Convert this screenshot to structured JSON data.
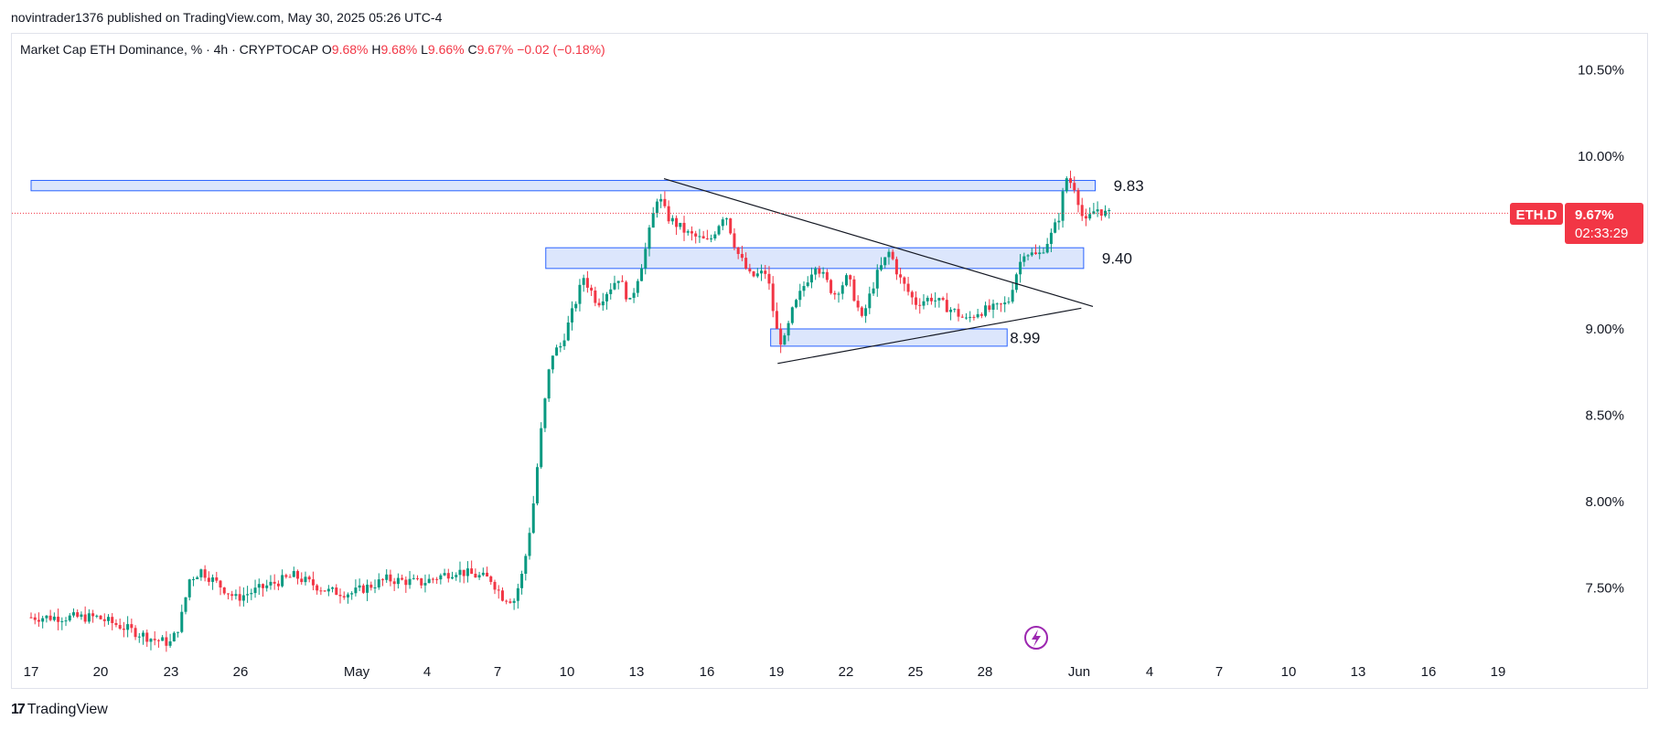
{
  "header": {
    "published_line": "novintrader1376 published on TradingView.com, May 30, 2025 05:26 UTC-4"
  },
  "legend": {
    "symbol_line": "Market Cap ETH Dominance, % · 4h · CRYPTOCAP",
    "open_label": "O",
    "open_value": "9.68%",
    "high_label": "H",
    "high_value": "9.68%",
    "low_label": "L",
    "low_value": "9.66%",
    "close_label": "C",
    "close_value": "9.67%",
    "change": "−0.02 (−0.18%)"
  },
  "price_tag": {
    "symbol": "ETH.D",
    "price": "9.67%",
    "countdown": "02:33:29"
  },
  "footer": {
    "brand": "TradingView",
    "mark": "17"
  },
  "colors": {
    "up": "#089981",
    "down": "#f23645",
    "zone_fill": "#d6e2fb",
    "zone_stroke": "#2962ff",
    "trendline": "#131722",
    "current_price_line": "#f23645",
    "text": "#131722"
  },
  "chart_data": {
    "type": "candlestick",
    "timeframe": "4h",
    "symbol": "CRYPTOCAP:ETH.D",
    "ylim": [
      7.15,
      10.75
    ],
    "y_ticks": [
      "10.50%",
      "10.00%",
      "9.00%",
      "8.50%",
      "8.00%",
      "7.50%"
    ],
    "x_ticks": [
      "17",
      "20",
      "23",
      "26",
      "May",
      "4",
      "7",
      "10",
      "13",
      "16",
      "19",
      "22",
      "25",
      "28",
      "Jun",
      "4",
      "7",
      "10",
      "13",
      "16",
      "19"
    ],
    "current_price": 9.67,
    "zones": [
      {
        "label": "9.83",
        "start_day": 16.0,
        "end_day": 61.9,
        "top": 9.86,
        "bottom": 9.8
      },
      {
        "label": "9.40",
        "start_day": 38.2,
        "end_day": 61.4,
        "top": 9.47,
        "bottom": 9.35
      },
      {
        "label": "8.99",
        "start_day": 47.9,
        "end_day": 58.1,
        "top": 9.0,
        "bottom": 8.9
      }
    ],
    "trendlines": [
      {
        "name": "descending",
        "x1_day": 43.3,
        "y1": 9.87,
        "x2_day": 61.8,
        "y2": 9.13
      },
      {
        "name": "ascending",
        "x1_day": 48.2,
        "y1": 8.8,
        "x2_day": 61.3,
        "y2": 9.12
      }
    ],
    "price_path": [
      {
        "day": 16.0,
        "price": 7.33
      },
      {
        "day": 19.0,
        "price": 7.33
      },
      {
        "day": 20.0,
        "price": 7.28
      },
      {
        "day": 21.5,
        "price": 7.2
      },
      {
        "day": 22.2,
        "price": 7.18
      },
      {
        "day": 22.6,
        "price": 7.3
      },
      {
        "day": 23.0,
        "price": 7.55
      },
      {
        "day": 23.5,
        "price": 7.6
      },
      {
        "day": 25.0,
        "price": 7.44
      },
      {
        "day": 26.5,
        "price": 7.52
      },
      {
        "day": 27.5,
        "price": 7.57
      },
      {
        "day": 29.0,
        "price": 7.48
      },
      {
        "day": 30.0,
        "price": 7.47
      },
      {
        "day": 31.5,
        "price": 7.55
      },
      {
        "day": 33.0,
        "price": 7.53
      },
      {
        "day": 34.5,
        "price": 7.6
      },
      {
        "day": 36.0,
        "price": 7.55
      },
      {
        "day": 36.5,
        "price": 7.45
      },
      {
        "day": 37.0,
        "price": 7.43
      },
      {
        "day": 37.4,
        "price": 7.6
      },
      {
        "day": 37.8,
        "price": 7.95
      },
      {
        "day": 38.2,
        "price": 8.45
      },
      {
        "day": 38.6,
        "price": 8.85
      },
      {
        "day": 39.0,
        "price": 8.9
      },
      {
        "day": 39.4,
        "price": 9.05
      },
      {
        "day": 40.0,
        "price": 9.3
      },
      {
        "day": 40.6,
        "price": 9.15
      },
      {
        "day": 41.5,
        "price": 9.3
      },
      {
        "day": 42.0,
        "price": 9.15
      },
      {
        "day": 42.6,
        "price": 9.42
      },
      {
        "day": 43.2,
        "price": 9.78
      },
      {
        "day": 43.6,
        "price": 9.65
      },
      {
        "day": 44.5,
        "price": 9.55
      },
      {
        "day": 45.4,
        "price": 9.5
      },
      {
        "day": 46.1,
        "price": 9.68
      },
      {
        "day": 46.6,
        "price": 9.45
      },
      {
        "day": 47.2,
        "price": 9.3
      },
      {
        "day": 47.9,
        "price": 9.33
      },
      {
        "day": 48.3,
        "price": 9.0
      },
      {
        "day": 48.6,
        "price": 8.9
      },
      {
        "day": 49.0,
        "price": 9.1
      },
      {
        "day": 49.5,
        "price": 9.25
      },
      {
        "day": 50.0,
        "price": 9.38
      },
      {
        "day": 50.8,
        "price": 9.2
      },
      {
        "day": 51.4,
        "price": 9.3
      },
      {
        "day": 52.0,
        "price": 9.05
      },
      {
        "day": 52.6,
        "price": 9.3
      },
      {
        "day": 53.2,
        "price": 9.45
      },
      {
        "day": 53.6,
        "price": 9.3
      },
      {
        "day": 54.3,
        "price": 9.15
      },
      {
        "day": 55.0,
        "price": 9.18
      },
      {
        "day": 56.0,
        "price": 9.1
      },
      {
        "day": 56.5,
        "price": 9.05
      },
      {
        "day": 57.0,
        "price": 9.1
      },
      {
        "day": 57.8,
        "price": 9.12
      },
      {
        "day": 58.3,
        "price": 9.15
      },
      {
        "day": 58.6,
        "price": 9.3
      },
      {
        "day": 59.0,
        "price": 9.45
      },
      {
        "day": 59.6,
        "price": 9.42
      },
      {
        "day": 60.2,
        "price": 9.55
      },
      {
        "day": 60.5,
        "price": 9.65
      },
      {
        "day": 60.8,
        "price": 9.88
      },
      {
        "day": 61.2,
        "price": 9.82
      },
      {
        "day": 61.6,
        "price": 9.6
      },
      {
        "day": 62.1,
        "price": 9.7
      },
      {
        "day": 62.6,
        "price": 9.66
      }
    ]
  }
}
